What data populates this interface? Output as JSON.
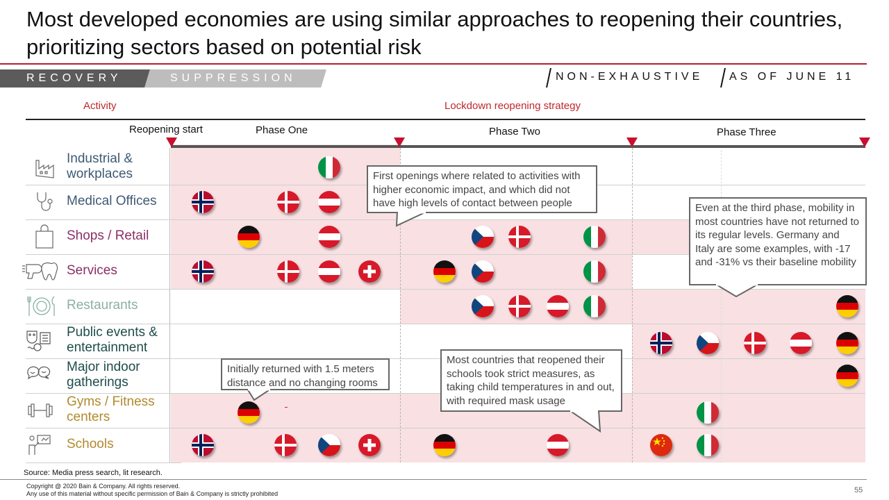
{
  "title": "Most developed economies are using similar approaches to reopening their countries, prioritizing sectors based on potential risk",
  "tabs": {
    "recovery": "RECOVERY",
    "suppression": "SUPPRESSION"
  },
  "tags": {
    "non_exhaustive": "NON-EXHAUSTIVE",
    "as_of": "AS OF JUNE 11"
  },
  "headers": {
    "activity": "Activity",
    "strategy": "Lockdown reopening strategy"
  },
  "phases": {
    "start": "Reopening start",
    "one": "Phase One",
    "two": "Phase Two",
    "three": "Phase Three"
  },
  "rows": [
    {
      "label": "Industrial & workplaces",
      "color": "#3d5a73",
      "icon": "factory-icon",
      "flags": [
        [
          "it",
          1
        ]
      ]
    },
    {
      "label": "Medical Offices",
      "color": "#3d5a73",
      "icon": "stethoscope-icon",
      "flags": [
        [
          "no",
          0
        ],
        [
          "dk",
          1
        ],
        [
          "at",
          1
        ]
      ]
    },
    {
      "label": "Shops / Retail",
      "color": "#8b2f66",
      "icon": "shopping-bag-icon",
      "flags": [
        [
          "de",
          1
        ],
        [
          "at",
          1
        ],
        [
          "cz",
          2
        ],
        [
          "dk",
          2
        ],
        [
          "it",
          2
        ]
      ]
    },
    {
      "label": "Services",
      "color": "#8b2f66",
      "icon": "services-icon",
      "flags": [
        [
          "no",
          0
        ],
        [
          "dk",
          1
        ],
        [
          "at",
          1
        ],
        [
          "ch",
          1
        ],
        [
          "de",
          2
        ],
        [
          "cz",
          2
        ],
        [
          "it",
          2
        ]
      ]
    },
    {
      "label": "Restaurants",
      "color": "#8ab0a2",
      "icon": "plate-cutlery-icon",
      "flags": [
        [
          "cz",
          2
        ],
        [
          "dk",
          2
        ],
        [
          "at",
          2
        ],
        [
          "it",
          2
        ],
        [
          "de",
          3
        ]
      ]
    },
    {
      "label": "Public events & entertainment",
      "color": "#1e4d4a",
      "icon": "theater-masks-icon",
      "flags": [
        [
          "no",
          3
        ],
        [
          "cz",
          3
        ],
        [
          "dk",
          3
        ],
        [
          "at",
          3
        ],
        [
          "de",
          3
        ]
      ]
    },
    {
      "label": "Major indoor gatherings",
      "color": "#1e4d4a",
      "icon": "chat-bubbles-icon",
      "flags": [
        [
          "de",
          3
        ]
      ]
    },
    {
      "label": "Gyms / Fitness centers",
      "color": "#b08a2e",
      "icon": "dumbbell-icon",
      "flags": [
        [
          "de",
          1
        ],
        [
          "it",
          3
        ]
      ]
    },
    {
      "label": "Schools",
      "color": "#b08a2e",
      "icon": "teacher-board-icon",
      "flags": [
        [
          "no",
          0
        ],
        [
          "dk",
          1
        ],
        [
          "cz",
          1
        ],
        [
          "ch",
          1
        ],
        [
          "de",
          2
        ],
        [
          "at",
          2
        ],
        [
          "cn",
          3
        ],
        [
          "it",
          3
        ]
      ]
    }
  ],
  "callouts": {
    "first_openings": "First openings where related to activities with higher economic impact, and which did not have high levels of contact between people",
    "third_phase": "Even at the third phase, mobility in most countries have not returned to its regular levels. Germany and Italy are some examples, with -17 and -31% vs their baseline mobility",
    "distance": "Initially returned with 1.5 meters distance and no changing rooms",
    "schools": "Most countries that reopened their schools took strict measures, as taking child temperatures in and out, with required mask usage"
  },
  "source": "Source: Media press search, lit research.",
  "copyright": "Copyright @ 2020 Bain & Company. All rights reserved.",
  "disclaimer": "Any use of this material without specific permission of Bain & Company is strictly prohibited",
  "page_number": "55",
  "colors": {
    "accent": "#c0272d",
    "band": "#f9e0e2"
  }
}
